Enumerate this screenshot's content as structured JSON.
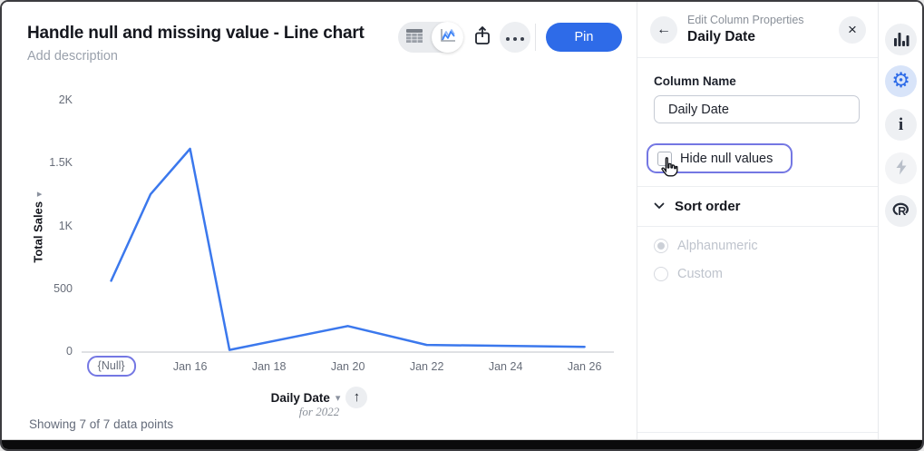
{
  "header": {
    "title": "Handle null and missing value - Line chart",
    "description_placeholder": "Add description"
  },
  "toolbar": {
    "pin_label": "Pin",
    "icons": [
      "table-view",
      "chart-view",
      "share",
      "more-options"
    ]
  },
  "chart_data": {
    "type": "line",
    "title": "Handle null and missing value - Line chart",
    "xlabel": "Daily Date",
    "xlabel_sub": "for 2022",
    "ylabel": "Total Sales",
    "ylim": [
      0,
      2000
    ],
    "grid": false,
    "legend": "none",
    "line_color": "#3b78ed",
    "points": [
      {
        "x": "{Null}",
        "day": 14,
        "value": 560
      },
      {
        "x": "Jan 15",
        "day": 15,
        "value": 1250
      },
      {
        "x": "Jan 16",
        "day": 16,
        "value": 1610
      },
      {
        "x": "Jan 17",
        "day": 17,
        "value": 10
      },
      {
        "x": "Jan 20",
        "day": 20,
        "value": 200
      },
      {
        "x": "Jan 22",
        "day": 22,
        "value": 50
      },
      {
        "x": "Jan 26",
        "day": 26,
        "value": 35
      }
    ],
    "x_ticks": [
      {
        "label": "{Null}",
        "day": 14,
        "highlighted": true
      },
      {
        "label": "Jan 16",
        "day": 16,
        "highlighted": false
      },
      {
        "label": "Jan 18",
        "day": 18,
        "highlighted": false
      },
      {
        "label": "Jan 20",
        "day": 20,
        "highlighted": false
      },
      {
        "label": "Jan 22",
        "day": 22,
        "highlighted": false
      },
      {
        "label": "Jan 24",
        "day": 24,
        "highlighted": false
      },
      {
        "label": "Jan 26",
        "day": 26,
        "highlighted": false
      }
    ],
    "y_ticks": [
      {
        "label": "0",
        "value": 0
      },
      {
        "label": "500",
        "value": 500
      },
      {
        "label": "1K",
        "value": 1000
      },
      {
        "label": "1.5K",
        "value": 1500
      },
      {
        "label": "2K",
        "value": 2000
      }
    ],
    "footer": "Showing 7 of 7 data points"
  },
  "panel": {
    "subtitle": "Edit Column Properties",
    "title": "Daily Date",
    "column_name_label": "Column Name",
    "column_name_value": "Daily Date",
    "hide_null_label": "Hide null values",
    "hide_null_checked": false,
    "sort_order_label": "Sort order",
    "sort_options": [
      {
        "label": "Alphanumeric",
        "selected": true,
        "disabled": true
      },
      {
        "label": "Custom",
        "selected": false,
        "disabled": true
      }
    ]
  },
  "right_rail": {
    "icons": [
      "bar-chart",
      "settings",
      "info",
      "lightning",
      "r-logo"
    ],
    "active": "settings"
  },
  "colors": {
    "accent_blue": "#2e6be8",
    "line_blue": "#3b78ed",
    "focus_purple": "#7477e3",
    "text_dark": "#15171e",
    "text_gray": "#8a9099"
  }
}
